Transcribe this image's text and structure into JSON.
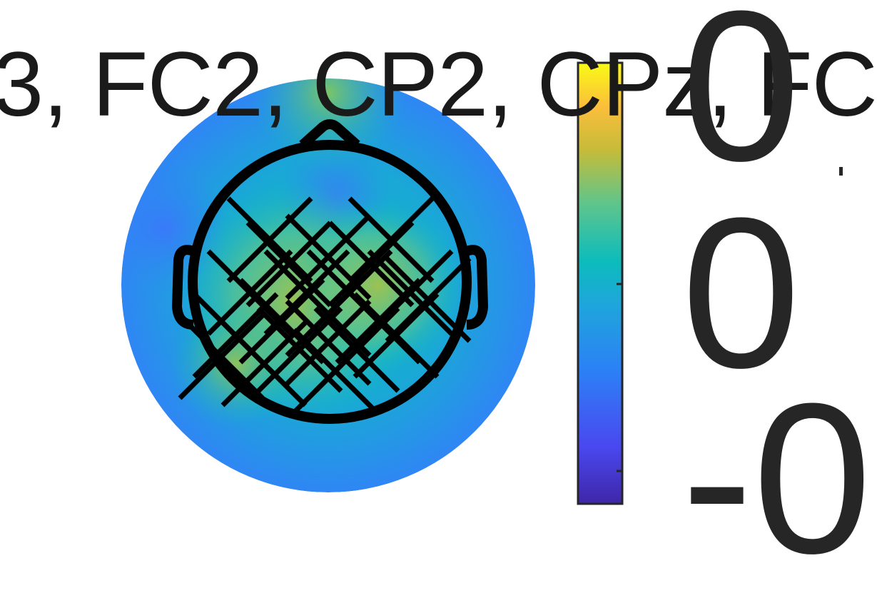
{
  "title": "3, FC2, CP2, CPz, FC",
  "colorbar": {
    "ticks": [
      "0",
      "0",
      "-0"
    ],
    "colormap": [
      "#3e26a8",
      "#4a48f0",
      "#2c80f6",
      "#1fa5dc",
      "#0cbcbc",
      "#5ec58c",
      "#c4bc3a",
      "#fbbe3b",
      "#f9fb15"
    ]
  },
  "head": {
    "nose_icon": "nose-icon",
    "ear_icons": [
      "left-ear-icon",
      "right-ear-icon"
    ],
    "electrode_marker": "cross-marker-icon"
  }
}
